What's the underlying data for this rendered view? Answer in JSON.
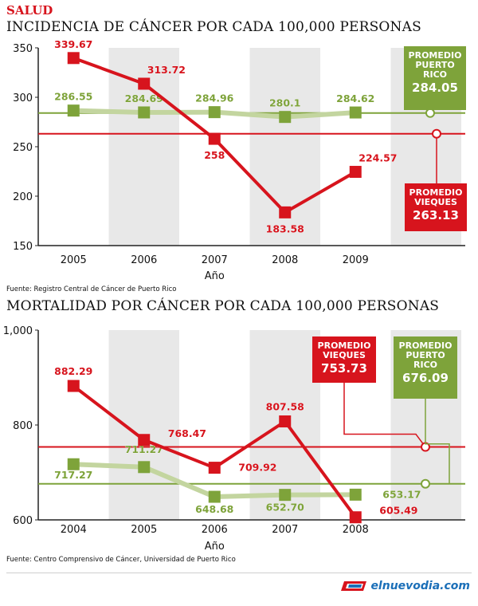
{
  "section": "SALUD",
  "logo": {
    "text": "elnuevodia.com"
  },
  "colors": {
    "red": "#d7141d",
    "green": "#7ea33a",
    "band": "#e8e8e8",
    "axis": "#222222"
  },
  "chart_data": [
    {
      "type": "line",
      "title": "INCIDENCIA DE CÁNCER POR CADA 100,000 PERSONAS",
      "xlabel": "Año",
      "ylabel": "",
      "ylim": [
        150,
        350
      ],
      "yticks": [
        "150",
        "200",
        "250",
        "300",
        "350"
      ],
      "categories": [
        "2005",
        "2006",
        "2007",
        "2008",
        "2009"
      ],
      "series": [
        {
          "name": "Vieques",
          "color": "#d7141d",
          "values": [
            339.67,
            313.72,
            258,
            183.58,
            224.57
          ],
          "labels": [
            "339.67",
            "313.72",
            "258",
            "183.58",
            "224.57"
          ]
        },
        {
          "name": "Puerto Rico",
          "color": "#7ea33a",
          "values": [
            286.55,
            284.69,
            284.96,
            280.1,
            284.62
          ],
          "labels": [
            "286.55",
            "284.69",
            "284.96",
            "280.1",
            "284.62"
          ]
        }
      ],
      "averages": [
        {
          "label_lines": [
            "PROMEDIO",
            "PUERTO",
            "RICO"
          ],
          "value": 284.05,
          "value_label": "284.05",
          "color": "#7ea33a"
        },
        {
          "label_lines": [
            "PROMEDIO",
            "VIEQUES"
          ],
          "value": 263.13,
          "value_label": "263.13",
          "color": "#d7141d"
        }
      ],
      "source": "Fuente: Registro Central de Cáncer de Puerto Rico"
    },
    {
      "type": "line",
      "title": "MORTALIDAD POR CÁNCER POR CADA 100,000 PERSONAS",
      "xlabel": "Año",
      "ylabel": "",
      "ylim": [
        600,
        1000
      ],
      "yticks": [
        "600",
        "800",
        "1,000"
      ],
      "categories": [
        "2004",
        "2005",
        "2006",
        "2007",
        "2008"
      ],
      "series": [
        {
          "name": "Vieques",
          "color": "#d7141d",
          "values": [
            882.29,
            768.47,
            709.92,
            807.58,
            605.49
          ],
          "labels": [
            "882.29",
            "768.47",
            "709.92",
            "807.58",
            "605.49"
          ]
        },
        {
          "name": "Puerto Rico",
          "color": "#7ea33a",
          "values": [
            717.27,
            711.27,
            648.68,
            652.7,
            653.17
          ],
          "labels": [
            "717.27",
            "711.27",
            "648.68",
            "652.70",
            "653.17"
          ]
        }
      ],
      "averages": [
        {
          "label_lines": [
            "PROMEDIO",
            "VIEQUES"
          ],
          "value": 753.73,
          "value_label": "753.73",
          "color": "#d7141d"
        },
        {
          "label_lines": [
            "PROMEDIO",
            "PUERTO",
            "RICO"
          ],
          "value": 676.09,
          "value_label": "676.09",
          "color": "#7ea33a"
        }
      ],
      "source": "Fuente: Centro Comprensivo de Cáncer, Universidad de Puerto Rico"
    }
  ]
}
